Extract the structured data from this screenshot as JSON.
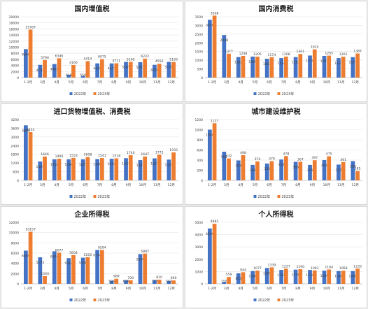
{
  "colors": {
    "y2022": "#4472c4",
    "y2023": "#ed7d31",
    "grid": "#e6e6e6",
    "text": "#404040",
    "title": "#1a1a1a"
  },
  "chart_data": [
    {
      "type": "bar",
      "title": "国内增值税",
      "categories": [
        "1-2月",
        "3月",
        "4月",
        "5月",
        "6月",
        "7月",
        "8月",
        "9月",
        "10月",
        "11月",
        "12月"
      ],
      "series": [
        {
          "name": "2022年",
          "values": [
            9360,
            4193,
            4465,
            918,
            550,
            4679,
            4671,
            5165,
            5051,
            4208,
            5170
          ]
        },
        {
          "name": "2023年",
          "values": [
            15787,
            5790,
            6346,
            4166,
            5414,
            6075,
            4711,
            5165,
            6222,
            4556,
            5120
          ]
        }
      ],
      "yticks": [
        0,
        2000,
        4000,
        6000,
        8000,
        10000,
        12000,
        14000,
        16000,
        18000,
        20000
      ],
      "ylim": [
        0,
        20000
      ],
      "legend": "bottom"
    },
    {
      "type": "bar",
      "title": "国内消费税",
      "categories": [
        "1-2月",
        "3月",
        "4月",
        "5月",
        "6月",
        "7月",
        "8月",
        "9月",
        "10月",
        "11月",
        "12月"
      ],
      "series": [
        {
          "name": "2022年",
          "values": [
            3326,
            2448,
            1182,
            1209,
            1083,
            1124,
            1183,
            1270,
            1247,
            1121,
            1177
          ]
        },
        {
          "name": "2023年",
          "values": [
            3568,
            1377,
            1248,
            1205,
            1174,
            1208,
            1361,
            1624,
            1265,
            1201,
            1387
          ]
        }
      ],
      "yticks": [
        0,
        500,
        1000,
        1500,
        2000,
        2500,
        3000,
        3500
      ],
      "ylim": [
        0,
        3500
      ],
      "legend": "bottom"
    },
    {
      "type": "bar",
      "title": "进口货物增值税、消费税",
      "categories": [
        "1-2月",
        "3月",
        "4月",
        "5月",
        "6月",
        "7月",
        "8月",
        "9月",
        "10月",
        "11月",
        "12月"
      ],
      "series": [
        {
          "name": "2022年",
          "values": [
            3800,
            1305,
            1458,
            1456,
            1457,
            1468,
            1494,
            1531,
            1397,
            1521,
            1435
          ]
        },
        {
          "name": "2023年",
          "values": [
            3333,
            1646,
            1494,
            1553,
            1608,
            1541,
            1518,
            1740,
            1647,
            1772,
            1933
          ]
        }
      ],
      "yticks": [
        0,
        600,
        1200,
        1800,
        2400,
        3000,
        3600,
        4200
      ],
      "ylim": [
        0,
        4200
      ],
      "legend": "bottom"
    },
    {
      "type": "bar",
      "title": "城市建设维护税",
      "categories": [
        "1-2月",
        "3月",
        "4月",
        "5月",
        "6月",
        "7月",
        "8月",
        "9月",
        "10月",
        "11月",
        "12月"
      ],
      "series": [
        {
          "name": "2022年",
          "values": [
            1000,
            565,
            393,
            305,
            332,
            412,
            365,
            305,
            401,
            312,
            380
          ]
        },
        {
          "name": "2023年",
          "values": [
            1127,
            432,
            498,
            374,
            379,
            478,
            367,
            397,
            475,
            361,
            185
          ]
        }
      ],
      "yticks": [
        0,
        200,
        400,
        600,
        800,
        1000,
        1200
      ],
      "ylim": [
        0,
        1200
      ],
      "legend": "bottom"
    },
    {
      "type": "bar",
      "title": "企业所得税",
      "categories": [
        "1-2月",
        "3月",
        "4月",
        "5月",
        "6月",
        "7月",
        "8月",
        "9月",
        "10月",
        "11月",
        "12月"
      ],
      "series": [
        {
          "name": "2022年",
          "values": [
            6480,
            5173,
            6344,
            5014,
            5100,
            6594,
            586,
            678,
            5800,
            727,
            567
          ]
        },
        {
          "name": "2023年",
          "values": [
            10157,
            1503,
            6077,
            5604,
            5200,
            6594,
            989,
            700,
            5897,
            810,
            660
          ]
        }
      ],
      "yticks": [
        0,
        2000,
        4000,
        6000,
        8000,
        10000,
        12000
      ],
      "ylim": [
        0,
        12000
      ],
      "legend": "bottom"
    },
    {
      "type": "bar",
      "title": "个人所得税",
      "categories": [
        "1-2月",
        "3月",
        "4月",
        "5月",
        "6月",
        "7月",
        "8月",
        "9月",
        "10月",
        "11月",
        "12月"
      ],
      "series": [
        {
          "name": "2022年",
          "values": [
            4500,
            155,
            853,
            1040,
            1289,
            1132,
            1156,
            1128,
            1069,
            1040,
            1040
          ]
        },
        {
          "name": "2023年",
          "values": [
            4881,
            559,
            944,
            1077,
            1339,
            1227,
            1190,
            1093,
            1164,
            1068,
            1233
          ]
        }
      ],
      "yticks": [
        0,
        1000,
        2000,
        3000,
        4000,
        5000
      ],
      "ylim": [
        0,
        5000
      ],
      "legend": "bottom"
    }
  ]
}
